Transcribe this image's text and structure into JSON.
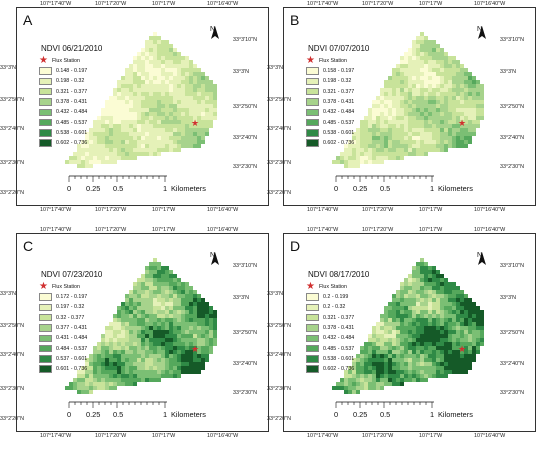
{
  "coords": {
    "top": [
      "107°17'40\"W",
      "107°17'20\"W",
      "107°17'W",
      "107°16'40\"W"
    ],
    "bottom": [
      "107°17'40\"W",
      "107°17'20\"W",
      "107°17'W",
      "107°16'40\"W"
    ],
    "left": [
      "33°3'N",
      "33°2'50\"N",
      "33°2'40\"N",
      "33°2'30\"N",
      "33°2'20\"N"
    ],
    "right": [
      "33°3'10\"N",
      "33°3'N",
      "33°2'50\"N",
      "33°2'40\"N",
      "33°2'30\"N"
    ]
  },
  "north_label": "N",
  "flux_label": "Flux Station",
  "scale": {
    "ticks": [
      "0",
      "0.25",
      "0.5",
      "1"
    ],
    "unit": "Kilometers"
  },
  "colors": [
    "#fbfcd4",
    "#e5f1b8",
    "#c8e39a",
    "#a7d38c",
    "#7bbf74",
    "#55a85c",
    "#2f8a46",
    "#155a28"
  ],
  "panels": [
    {
      "letter": "A",
      "title": "NDVI 06/21/2010",
      "density": 0.9,
      "ranges": [
        "0.148 - 0.197",
        "0.198 - 0.32",
        "0.321 - 0.377",
        "0.378 - 0.431",
        "0.432 - 0.484",
        "0.485 - 0.537",
        "0.538 - 0.601",
        "0.602 - 0.736"
      ]
    },
    {
      "letter": "B",
      "title": "NDVI 07/07/2010",
      "density": 1.05,
      "ranges": [
        "0.158 - 0.197",
        "0.198 - 0.32",
        "0.321 - 0.377",
        "0.378 - 0.431",
        "0.432 - 0.484",
        "0.485 - 0.537",
        "0.538 - 0.601",
        "0.602 - 0.736"
      ]
    },
    {
      "letter": "C",
      "title": "NDVI 07/23/2010",
      "density": 1.6,
      "ranges": [
        "0.172 - 0.197",
        "0.197 - 0.32",
        "0.32 - 0.377",
        "0.377 - 0.431",
        "0.431 - 0.484",
        "0.484 - 0.537",
        "0.537 - 0.601",
        "0.601 - 0.736"
      ]
    },
    {
      "letter": "D",
      "title": "NDVI 08/17/2010",
      "density": 1.75,
      "ranges": [
        "0.2 - 0.199",
        "0.2 - 0.32",
        "0.321 - 0.377",
        "0.378 - 0.431",
        "0.432 - 0.484",
        "0.485 - 0.537",
        "0.538 - 0.601",
        "0.602 - 0.736"
      ]
    }
  ]
}
